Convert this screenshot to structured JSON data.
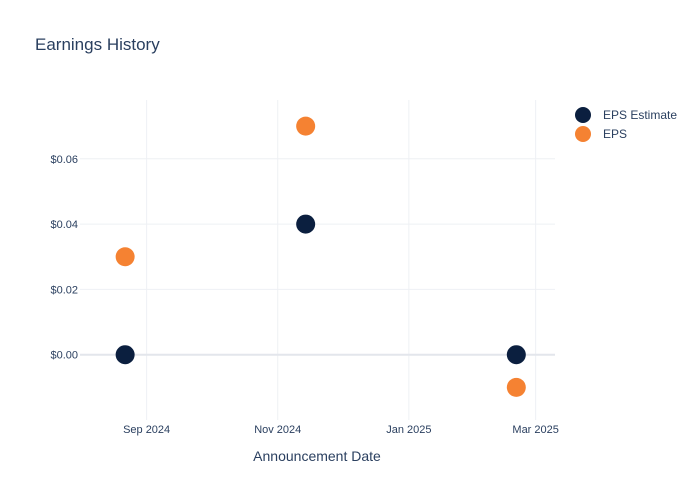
{
  "chart_data": {
    "type": "scatter",
    "title": "Earnings History",
    "xlabel": "Announcement Date",
    "ylabel": "",
    "x_ticks": [
      "Sep 2024",
      "Nov 2024",
      "Jan 2025",
      "Mar 2025"
    ],
    "y_ticks": [
      "$0.00",
      "$0.02",
      "$0.04",
      "$0.06"
    ],
    "ylim": [
      -0.02,
      0.078
    ],
    "grid": true,
    "legend_position": "top-right",
    "series": [
      {
        "name": "EPS Estimate",
        "color": "#0b1f3f",
        "points": [
          {
            "x": "2024-08-22",
            "y": 0.0
          },
          {
            "x": "2024-11-14",
            "y": 0.04
          },
          {
            "x": "2025-02-20",
            "y": 0.0
          }
        ]
      },
      {
        "name": "EPS",
        "color": "#f58232",
        "points": [
          {
            "x": "2024-08-22",
            "y": 0.03
          },
          {
            "x": "2024-11-14",
            "y": 0.07
          },
          {
            "x": "2025-02-20",
            "y": -0.01
          }
        ]
      }
    ]
  }
}
